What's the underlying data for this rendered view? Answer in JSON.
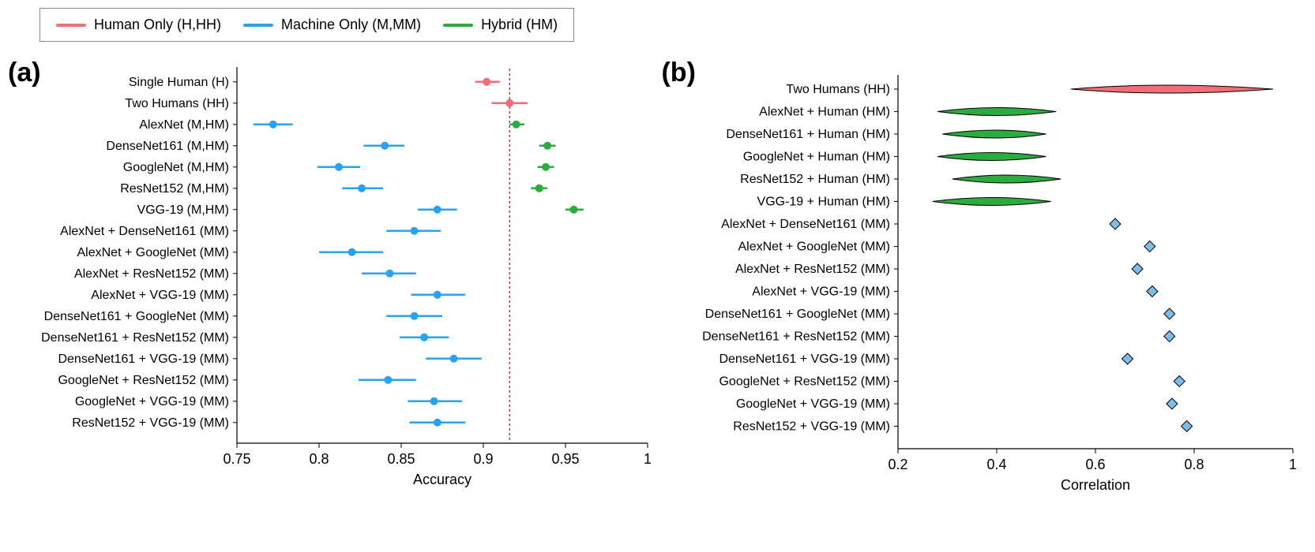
{
  "colors": {
    "human": "#f26d78",
    "machine": "#2aa3ef",
    "hybrid": "#2cab3f",
    "machine_fill": "#7dbde8",
    "ref_line": "#cc3333",
    "axis": "#000000",
    "bg": "#ffffff"
  },
  "legend": {
    "items": [
      {
        "label": "Human Only (H,HH)",
        "color_key": "human"
      },
      {
        "label": "Machine Only (M,MM)",
        "color_key": "machine"
      },
      {
        "label": "Hybrid (HM)",
        "color_key": "hybrid"
      }
    ]
  },
  "panel_a": {
    "tag": "(a)",
    "x_title": "Accuracy",
    "xlim": [
      0.75,
      1.0
    ],
    "xticks": [
      0.75,
      0.8,
      0.85,
      0.9,
      0.95,
      1.0
    ],
    "xtick_labels": [
      "0.75",
      "0.8",
      "0.85",
      "0.9",
      "0.95",
      "1"
    ],
    "reference_x": 0.916,
    "row_fontsize": 16,
    "marker_radius": 5,
    "err_cap": 0,
    "rows": [
      {
        "label": "Single Human (H)",
        "series": [
          {
            "color_key": "human",
            "x": 0.902,
            "lo": 0.895,
            "hi": 0.91
          }
        ]
      },
      {
        "label": "Two Humans (HH)",
        "series": [
          {
            "color_key": "human",
            "x": 0.916,
            "lo": 0.905,
            "hi": 0.927
          }
        ]
      },
      {
        "label": "AlexNet (M,HM)",
        "series": [
          {
            "color_key": "machine",
            "x": 0.772,
            "lo": 0.76,
            "hi": 0.784
          },
          {
            "color_key": "hybrid",
            "x": 0.92,
            "lo": 0.916,
            "hi": 0.925
          }
        ]
      },
      {
        "label": "DenseNet161 (M,HM)",
        "series": [
          {
            "color_key": "machine",
            "x": 0.84,
            "lo": 0.827,
            "hi": 0.852
          },
          {
            "color_key": "hybrid",
            "x": 0.939,
            "lo": 0.934,
            "hi": 0.944
          }
        ]
      },
      {
        "label": "GoogleNet (M,HM)",
        "series": [
          {
            "color_key": "machine",
            "x": 0.812,
            "lo": 0.799,
            "hi": 0.825
          },
          {
            "color_key": "hybrid",
            "x": 0.938,
            "lo": 0.933,
            "hi": 0.943
          }
        ]
      },
      {
        "label": "ResNet152 (M,HM)",
        "series": [
          {
            "color_key": "machine",
            "x": 0.826,
            "lo": 0.814,
            "hi": 0.839
          },
          {
            "color_key": "hybrid",
            "x": 0.934,
            "lo": 0.929,
            "hi": 0.939
          }
        ]
      },
      {
        "label": "VGG-19 (M,HM)",
        "series": [
          {
            "color_key": "machine",
            "x": 0.872,
            "lo": 0.86,
            "hi": 0.884
          },
          {
            "color_key": "hybrid",
            "x": 0.955,
            "lo": 0.95,
            "hi": 0.961
          }
        ]
      },
      {
        "label": "AlexNet + DenseNet161 (MM)",
        "series": [
          {
            "color_key": "machine",
            "x": 0.858,
            "lo": 0.841,
            "hi": 0.874
          }
        ]
      },
      {
        "label": "AlexNet + GoogleNet (MM)",
        "series": [
          {
            "color_key": "machine",
            "x": 0.82,
            "lo": 0.8,
            "hi": 0.839
          }
        ]
      },
      {
        "label": "AlexNet + ResNet152 (MM)",
        "series": [
          {
            "color_key": "machine",
            "x": 0.843,
            "lo": 0.826,
            "hi": 0.859
          }
        ]
      },
      {
        "label": "AlexNet + VGG-19 (MM)",
        "series": [
          {
            "color_key": "machine",
            "x": 0.872,
            "lo": 0.856,
            "hi": 0.889
          }
        ]
      },
      {
        "label": "DenseNet161 + GoogleNet (MM)",
        "series": [
          {
            "color_key": "machine",
            "x": 0.858,
            "lo": 0.841,
            "hi": 0.875
          }
        ]
      },
      {
        "label": "DenseNet161 + ResNet152 (MM)",
        "series": [
          {
            "color_key": "machine",
            "x": 0.864,
            "lo": 0.849,
            "hi": 0.879
          }
        ]
      },
      {
        "label": "DenseNet161 + VGG-19 (MM)",
        "series": [
          {
            "color_key": "machine",
            "x": 0.882,
            "lo": 0.865,
            "hi": 0.899
          }
        ]
      },
      {
        "label": "GoogleNet + ResNet152 (MM)",
        "series": [
          {
            "color_key": "machine",
            "x": 0.842,
            "lo": 0.824,
            "hi": 0.859
          }
        ]
      },
      {
        "label": "GoogleNet + VGG-19 (MM)",
        "series": [
          {
            "color_key": "machine",
            "x": 0.87,
            "lo": 0.854,
            "hi": 0.887
          }
        ]
      },
      {
        "label": "ResNet152 + VGG-19 (MM)",
        "series": [
          {
            "color_key": "machine",
            "x": 0.872,
            "lo": 0.855,
            "hi": 0.889
          }
        ]
      }
    ]
  },
  "panel_b": {
    "tag": "(b)",
    "x_title": "Correlation",
    "xlim": [
      0.2,
      1.0
    ],
    "xticks": [
      0.2,
      0.4,
      0.6,
      0.8,
      1.0
    ],
    "xtick_labels": [
      "0.2",
      "0.4",
      "0.6",
      "0.8",
      "1"
    ],
    "violin_half_height": 10,
    "diamond_size": 7,
    "rows": [
      {
        "label": "Two Humans (HH)",
        "type": "violin",
        "color_key": "human",
        "center": 0.74,
        "lo": 0.55,
        "hi": 0.96,
        "widen": 1.0
      },
      {
        "label": "AlexNet + Human (HM)",
        "type": "violin",
        "color_key": "hybrid",
        "center": 0.4,
        "lo": 0.28,
        "hi": 0.52,
        "widen": 1.0
      },
      {
        "label": "DenseNet161 + Human (HM)",
        "type": "violin",
        "color_key": "hybrid",
        "center": 0.4,
        "lo": 0.29,
        "hi": 0.5,
        "widen": 1.0
      },
      {
        "label": "GoogleNet + Human (HM)",
        "type": "violin",
        "color_key": "hybrid",
        "center": 0.39,
        "lo": 0.28,
        "hi": 0.5,
        "widen": 1.0
      },
      {
        "label": "ResNet152 + Human (HM)",
        "type": "violin",
        "color_key": "hybrid",
        "center": 0.42,
        "lo": 0.31,
        "hi": 0.53,
        "widen": 1.0
      },
      {
        "label": "VGG-19 + Human (HM)",
        "type": "violin",
        "color_key": "hybrid",
        "center": 0.39,
        "lo": 0.27,
        "hi": 0.51,
        "widen": 1.0
      },
      {
        "label": "AlexNet + DenseNet161 (MM)",
        "type": "diamond",
        "color_key": "machine_fill",
        "x": 0.64
      },
      {
        "label": "AlexNet + GoogleNet (MM)",
        "type": "diamond",
        "color_key": "machine_fill",
        "x": 0.71
      },
      {
        "label": "AlexNet + ResNet152 (MM)",
        "type": "diamond",
        "color_key": "machine_fill",
        "x": 0.685
      },
      {
        "label": "AlexNet + VGG-19 (MM)",
        "type": "diamond",
        "color_key": "machine_fill",
        "x": 0.715
      },
      {
        "label": "DenseNet161 + GoogleNet (MM)",
        "type": "diamond",
        "color_key": "machine_fill",
        "x": 0.75
      },
      {
        "label": "DenseNet161 + ResNet152 (MM)",
        "type": "diamond",
        "color_key": "machine_fill",
        "x": 0.75
      },
      {
        "label": "DenseNet161 + VGG-19 (MM)",
        "type": "diamond",
        "color_key": "machine_fill",
        "x": 0.665
      },
      {
        "label": "GoogleNet + ResNet152 (MM)",
        "type": "diamond",
        "color_key": "machine_fill",
        "x": 0.77
      },
      {
        "label": "GoogleNet + VGG-19 (MM)",
        "type": "diamond",
        "color_key": "machine_fill",
        "x": 0.755
      },
      {
        "label": "ResNet152 + VGG-19 (MM)",
        "type": "diamond",
        "color_key": "machine_fill",
        "x": 0.785
      }
    ]
  }
}
